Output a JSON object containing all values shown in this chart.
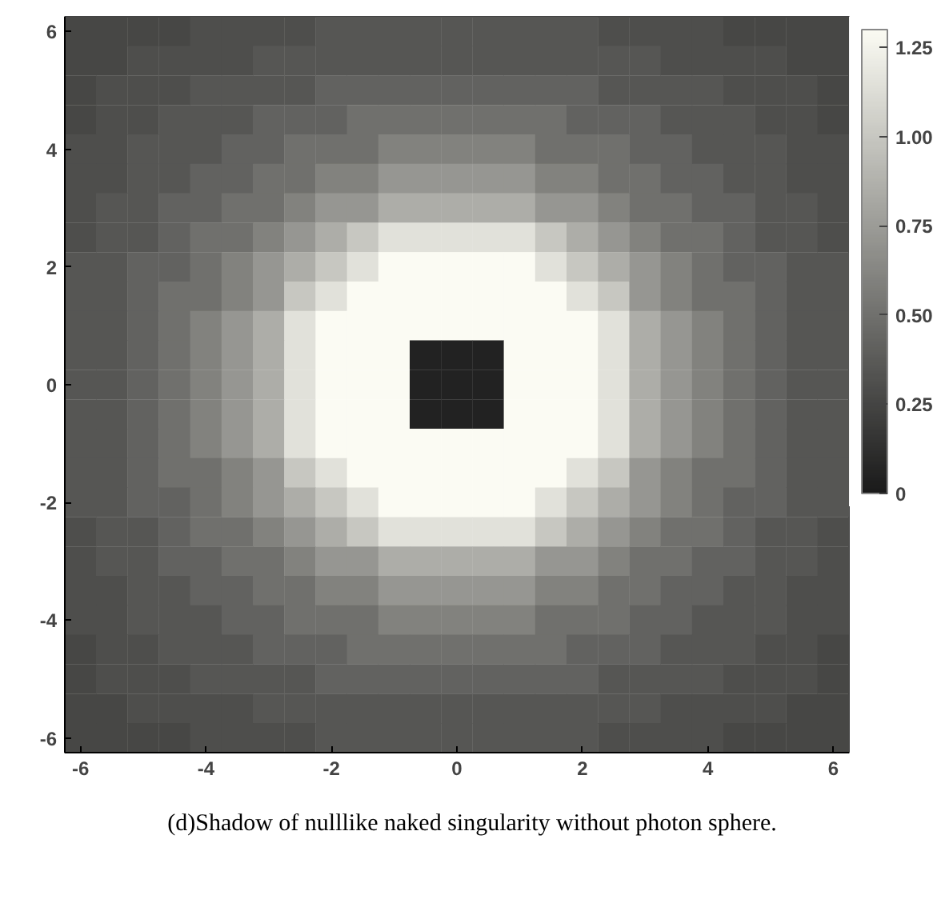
{
  "chart_data": {
    "type": "heatmap",
    "annotations": [
      "(d)Shadow of nulllike naked singularity without photon sphere."
    ],
    "categories": [
      "-6",
      null,
      null,
      null,
      "-4",
      null,
      null,
      null,
      "-2",
      null,
      null,
      null,
      "0",
      null,
      null,
      null,
      "2",
      null,
      null,
      null,
      "4",
      null,
      null,
      null,
      "6"
    ],
    "y_categories": [
      "6",
      null,
      null,
      null,
      "4",
      null,
      null,
      null,
      "2",
      null,
      null,
      null,
      "0",
      null,
      null,
      null,
      "-2",
      null,
      null,
      null,
      "-4",
      null,
      null,
      null,
      "-6"
    ],
    "clim": [
      0,
      1.3
    ],
    "cticks": [
      0,
      0.25,
      {
        "value": 0.5,
        "label": "0.50"
      },
      {
        "value": 0.75,
        "label": "0.75"
      },
      {
        "value": 1.0,
        "label": "1.00"
      },
      1.25
    ],
    "colors": [
      "#1a1a1a",
      "#fbfbf3"
    ],
    "cells": [
      [
        0.26,
        0.26,
        0.26,
        0.26,
        0.3,
        0.3,
        0.3,
        0.3,
        0.35,
        0.35,
        0.35,
        0.35,
        0.35,
        0.35,
        0.35,
        0.35,
        0.35,
        0.3,
        0.3,
        0.3,
        0.3,
        0.26,
        0.26,
        0.26,
        0.26
      ],
      [
        0.26,
        0.26,
        0.3,
        0.3,
        0.3,
        0.3,
        0.35,
        0.35,
        0.35,
        0.35,
        0.35,
        0.35,
        0.35,
        0.35,
        0.35,
        0.35,
        0.35,
        0.35,
        0.35,
        0.3,
        0.3,
        0.3,
        0.3,
        0.26,
        0.26
      ],
      [
        0.26,
        0.3,
        0.3,
        0.3,
        0.35,
        0.35,
        0.35,
        0.35,
        0.42,
        0.42,
        0.42,
        0.42,
        0.42,
        0.42,
        0.42,
        0.42,
        0.42,
        0.35,
        0.35,
        0.35,
        0.35,
        0.3,
        0.3,
        0.3,
        0.26
      ],
      [
        0.26,
        0.3,
        0.3,
        0.35,
        0.35,
        0.35,
        0.42,
        0.42,
        0.42,
        0.5,
        0.5,
        0.5,
        0.5,
        0.5,
        0.5,
        0.5,
        0.42,
        0.42,
        0.42,
        0.35,
        0.35,
        0.35,
        0.3,
        0.3,
        0.26
      ],
      [
        0.3,
        0.3,
        0.35,
        0.35,
        0.35,
        0.42,
        0.42,
        0.5,
        0.5,
        0.5,
        0.6,
        0.6,
        0.6,
        0.6,
        0.6,
        0.5,
        0.5,
        0.5,
        0.42,
        0.42,
        0.35,
        0.35,
        0.35,
        0.3,
        0.3
      ],
      [
        0.3,
        0.3,
        0.35,
        0.35,
        0.42,
        0.42,
        0.5,
        0.5,
        0.6,
        0.6,
        0.72,
        0.72,
        0.72,
        0.72,
        0.72,
        0.6,
        0.6,
        0.5,
        0.5,
        0.42,
        0.42,
        0.35,
        0.35,
        0.3,
        0.3
      ],
      [
        0.3,
        0.35,
        0.35,
        0.42,
        0.42,
        0.5,
        0.5,
        0.6,
        0.72,
        0.72,
        0.85,
        0.85,
        0.85,
        0.85,
        0.85,
        0.72,
        0.72,
        0.6,
        0.5,
        0.5,
        0.42,
        0.42,
        0.35,
        0.35,
        0.3
      ],
      [
        0.3,
        0.35,
        0.35,
        0.42,
        0.5,
        0.5,
        0.6,
        0.72,
        0.85,
        1.0,
        1.15,
        1.15,
        1.15,
        1.15,
        1.15,
        1.0,
        0.85,
        0.72,
        0.6,
        0.5,
        0.5,
        0.42,
        0.35,
        0.35,
        0.3
      ],
      [
        0.35,
        0.35,
        0.42,
        0.42,
        0.5,
        0.6,
        0.72,
        0.85,
        1.0,
        1.15,
        1.3,
        1.3,
        1.3,
        1.3,
        1.3,
        1.15,
        1.0,
        0.85,
        0.72,
        0.6,
        0.5,
        0.42,
        0.42,
        0.35,
        0.35
      ],
      [
        0.35,
        0.35,
        0.42,
        0.5,
        0.5,
        0.6,
        0.72,
        1.0,
        1.15,
        1.3,
        1.3,
        1.3,
        1.3,
        1.3,
        1.3,
        1.3,
        1.15,
        1.0,
        0.72,
        0.6,
        0.5,
        0.5,
        0.42,
        0.35,
        0.35
      ],
      [
        0.35,
        0.35,
        0.42,
        0.5,
        0.6,
        0.72,
        0.85,
        1.15,
        1.3,
        1.3,
        1.3,
        1.3,
        1.3,
        1.3,
        1.3,
        1.3,
        1.3,
        1.15,
        0.85,
        0.72,
        0.6,
        0.5,
        0.42,
        0.35,
        0.35
      ],
      [
        0.35,
        0.35,
        0.42,
        0.5,
        0.6,
        0.72,
        0.85,
        1.15,
        1.3,
        1.3,
        1.3,
        0.05,
        0.05,
        0.05,
        1.3,
        1.3,
        1.3,
        1.15,
        0.85,
        0.72,
        0.6,
        0.5,
        0.42,
        0.35,
        0.35
      ],
      [
        0.35,
        0.35,
        0.42,
        0.5,
        0.6,
        0.72,
        0.85,
        1.15,
        1.3,
        1.3,
        1.3,
        0.05,
        0.05,
        0.05,
        1.3,
        1.3,
        1.3,
        1.15,
        0.85,
        0.72,
        0.6,
        0.5,
        0.42,
        0.35,
        0.35
      ],
      [
        0.35,
        0.35,
        0.42,
        0.5,
        0.6,
        0.72,
        0.85,
        1.15,
        1.3,
        1.3,
        1.3,
        0.05,
        0.05,
        0.05,
        1.3,
        1.3,
        1.3,
        1.15,
        0.85,
        0.72,
        0.6,
        0.5,
        0.42,
        0.35,
        0.35
      ],
      [
        0.35,
        0.35,
        0.42,
        0.5,
        0.6,
        0.72,
        0.85,
        1.15,
        1.3,
        1.3,
        1.3,
        1.3,
        1.3,
        1.3,
        1.3,
        1.3,
        1.3,
        1.15,
        0.85,
        0.72,
        0.6,
        0.5,
        0.42,
        0.35,
        0.35
      ],
      [
        0.35,
        0.35,
        0.42,
        0.5,
        0.5,
        0.6,
        0.72,
        1.0,
        1.15,
        1.3,
        1.3,
        1.3,
        1.3,
        1.3,
        1.3,
        1.3,
        1.15,
        1.0,
        0.72,
        0.6,
        0.5,
        0.5,
        0.42,
        0.35,
        0.35
      ],
      [
        0.35,
        0.35,
        0.42,
        0.42,
        0.5,
        0.6,
        0.72,
        0.85,
        1.0,
        1.15,
        1.3,
        1.3,
        1.3,
        1.3,
        1.3,
        1.15,
        1.0,
        0.85,
        0.72,
        0.6,
        0.5,
        0.42,
        0.42,
        0.35,
        0.35
      ],
      [
        0.3,
        0.35,
        0.35,
        0.42,
        0.5,
        0.5,
        0.6,
        0.72,
        0.85,
        1.0,
        1.15,
        1.15,
        1.15,
        1.15,
        1.15,
        1.0,
        0.85,
        0.72,
        0.6,
        0.5,
        0.5,
        0.42,
        0.35,
        0.35,
        0.3
      ],
      [
        0.3,
        0.35,
        0.35,
        0.42,
        0.42,
        0.5,
        0.5,
        0.6,
        0.72,
        0.72,
        0.85,
        0.85,
        0.85,
        0.85,
        0.85,
        0.72,
        0.72,
        0.6,
        0.5,
        0.5,
        0.42,
        0.42,
        0.35,
        0.35,
        0.3
      ],
      [
        0.3,
        0.3,
        0.35,
        0.35,
        0.42,
        0.42,
        0.5,
        0.5,
        0.6,
        0.6,
        0.72,
        0.72,
        0.72,
        0.72,
        0.72,
        0.6,
        0.6,
        0.5,
        0.5,
        0.42,
        0.42,
        0.35,
        0.35,
        0.3,
        0.3
      ],
      [
        0.3,
        0.3,
        0.35,
        0.35,
        0.35,
        0.42,
        0.42,
        0.5,
        0.5,
        0.5,
        0.6,
        0.6,
        0.6,
        0.6,
        0.6,
        0.5,
        0.5,
        0.5,
        0.42,
        0.42,
        0.35,
        0.35,
        0.35,
        0.3,
        0.3
      ],
      [
        0.26,
        0.3,
        0.3,
        0.35,
        0.35,
        0.35,
        0.42,
        0.42,
        0.42,
        0.5,
        0.5,
        0.5,
        0.5,
        0.5,
        0.5,
        0.5,
        0.42,
        0.42,
        0.42,
        0.35,
        0.35,
        0.35,
        0.3,
        0.3,
        0.26
      ],
      [
        0.26,
        0.3,
        0.3,
        0.3,
        0.35,
        0.35,
        0.35,
        0.35,
        0.42,
        0.42,
        0.42,
        0.42,
        0.42,
        0.42,
        0.42,
        0.42,
        0.42,
        0.35,
        0.35,
        0.35,
        0.35,
        0.3,
        0.3,
        0.3,
        0.26
      ],
      [
        0.26,
        0.26,
        0.3,
        0.3,
        0.3,
        0.3,
        0.35,
        0.35,
        0.35,
        0.35,
        0.35,
        0.35,
        0.35,
        0.35,
        0.35,
        0.35,
        0.35,
        0.35,
        0.35,
        0.3,
        0.3,
        0.3,
        0.3,
        0.26,
        0.26
      ],
      [
        0.26,
        0.26,
        0.26,
        0.26,
        0.3,
        0.3,
        0.3,
        0.3,
        0.35,
        0.35,
        0.35,
        0.35,
        0.35,
        0.35,
        0.35,
        0.35,
        0.35,
        0.3,
        0.3,
        0.3,
        0.3,
        0.26,
        0.26,
        0.26,
        0.26
      ]
    ]
  }
}
